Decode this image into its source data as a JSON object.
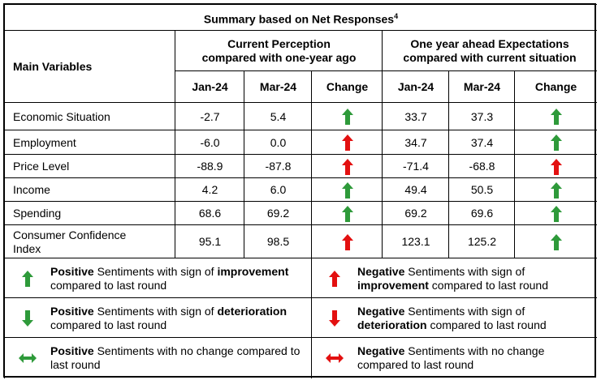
{
  "title": "Summary based on Net Responses",
  "title_sup": "4",
  "header": {
    "main": "Main Variables",
    "groups": [
      [
        "Current Perception",
        "compared with one-year ago"
      ],
      [
        "One year ahead Expectations",
        "compared with current situation"
      ]
    ],
    "columns": [
      "Jan-24",
      "Mar-24",
      "Change",
      "Jan-24",
      "Mar-24",
      "Change"
    ]
  },
  "rows": [
    {
      "label": "Economic Situation",
      "current": [
        "-2.7",
        "5.4"
      ],
      "current_change": "#2e9a3a",
      "ahead": [
        "33.7",
        "37.3"
      ],
      "ahead_change": "#2e9a3a"
    },
    {
      "label": "Employment",
      "current": [
        "-6.0",
        "0.0"
      ],
      "current_change": "#e31010",
      "ahead": [
        "34.7",
        "37.4"
      ],
      "ahead_change": "#2e9a3a"
    },
    {
      "label": "Price Level",
      "current": [
        "-88.9",
        "-87.8"
      ],
      "current_change": "#e31010",
      "ahead": [
        "-71.4",
        "-68.8"
      ],
      "ahead_change": "#e31010"
    },
    {
      "label": "Income",
      "current": [
        "4.2",
        "6.0"
      ],
      "current_change": "#2e9a3a",
      "ahead": [
        "49.4",
        "50.5"
      ],
      "ahead_change": "#2e9a3a"
    },
    {
      "label": "Spending",
      "current": [
        "68.6",
        "69.2"
      ],
      "current_change": "#2e9a3a",
      "ahead": [
        "69.2",
        "69.6"
      ],
      "ahead_change": "#2e9a3a"
    },
    {
      "label": "Consumer Confidence Index",
      "current": [
        "95.1",
        "98.5"
      ],
      "current_change": "#e31010",
      "ahead": [
        "123.1",
        "125.2"
      ],
      "ahead_change": "#2e9a3a"
    }
  ],
  "legend": [
    {
      "arrow": "up",
      "color": "#2e9a3a",
      "parts": [
        "Positive",
        " Sentiments with sign of ",
        "improvement",
        " compared to last round"
      ]
    },
    {
      "arrow": "up",
      "color": "#e31010",
      "parts": [
        "Negative",
        " Sentiments with sign of ",
        "improvement",
        " compared to last round"
      ]
    },
    {
      "arrow": "down",
      "color": "#2e9a3a",
      "parts": [
        "Positive",
        " Sentiments with sign of ",
        "deterioration",
        " compared to last round"
      ]
    },
    {
      "arrow": "down",
      "color": "#e31010",
      "parts": [
        "Negative",
        " Sentiments with sign of ",
        "deterioration",
        " compared to last round"
      ]
    },
    {
      "arrow": "both",
      "color": "#2e9a3a",
      "parts": [
        "Positive",
        " Sentiments with no change compared to last round"
      ]
    },
    {
      "arrow": "both",
      "color": "#e31010",
      "parts": [
        "Negative",
        " Sentiments with no change compared to last round"
      ]
    }
  ]
}
